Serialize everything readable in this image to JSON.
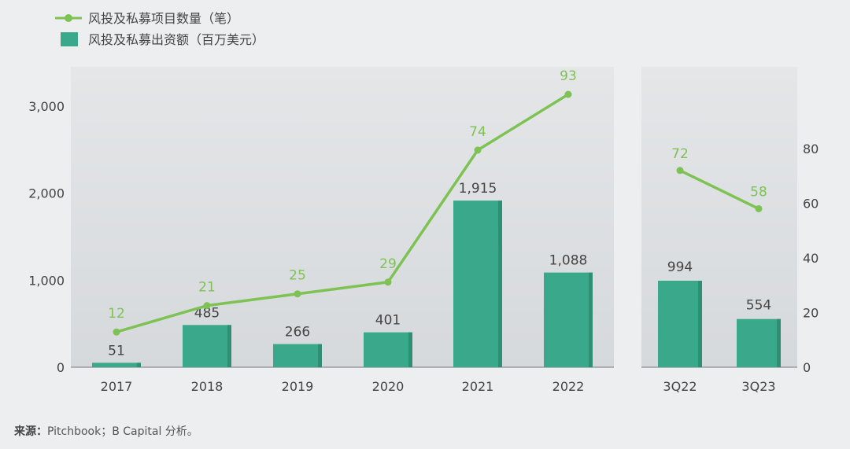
{
  "legend": {
    "line_label": "风投及私募项目数量（笔）",
    "bar_label": "风投及私募出资额（百万美元）"
  },
  "source": {
    "label": "来源：",
    "text": "Pitchbook；B Capital 分析。"
  },
  "colors": {
    "bar": "#3aa98b",
    "bar_edge": "#2f8f75",
    "line": "#7dc253",
    "line_label": "#7dc253",
    "bar_label": "#444444",
    "axis_text": "#444444",
    "panel": "#dfe2e5"
  },
  "chart_data": [
    {
      "type": "bar+line",
      "categories": [
        "2017",
        "2018",
        "2019",
        "2020",
        "2021",
        "2022"
      ],
      "series": [
        {
          "name": "风投及私募出资额（百万美元）",
          "type": "bar",
          "axis": "left",
          "values": [
            51,
            485,
            266,
            401,
            1915,
            1088
          ]
        },
        {
          "name": "风投及私募项目数量（笔）",
          "type": "line",
          "values": [
            12,
            21,
            25,
            29,
            74,
            93
          ]
        }
      ],
      "y_axis": {
        "ticks": [
          0,
          1000,
          2000,
          3000
        ],
        "tick_labels": [
          "0",
          "1,000",
          "2,000",
          "3,000"
        ],
        "ylim": [
          0,
          3400
        ]
      },
      "line_scale": [
        0,
        105
      ]
    },
    {
      "type": "bar+line",
      "categories": [
        "3Q22",
        "3Q23"
      ],
      "series": [
        {
          "name": "风投及私募出资额（百万美元）",
          "type": "bar",
          "values": [
            994,
            554
          ]
        },
        {
          "name": "风投及私募项目数量（笔）",
          "type": "line",
          "axis": "right",
          "values": [
            72,
            58
          ]
        }
      ],
      "y2_axis": {
        "ticks": [
          0,
          20,
          40,
          60,
          80
        ],
        "tick_labels": [
          "0",
          "20",
          "40",
          "60",
          "80"
        ],
        "ylim": [
          0,
          110
        ]
      },
      "bar_scale": [
        0,
        3400
      ]
    }
  ]
}
